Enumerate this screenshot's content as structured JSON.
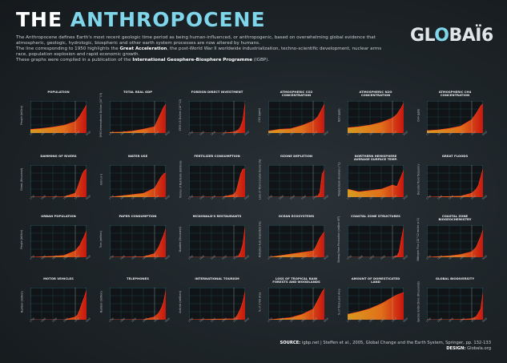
{
  "header": {
    "title_part1": "THE",
    "title_part2": "ANTHROPOCENE",
    "intro_line1": "The Anthropocene defines Earth's most recent geologic time period as being human-influenced, or anthropogenic, based on overwhelming global evidence that atmospheric, geologic, hydrologic, biospheric and other earth system processes are now altered by humans.",
    "intro_line2_pre": "The line corresponding to 1950 highlights the ",
    "intro_line2_bold": "Great Acceleration",
    "intro_line2_post": ", the post-World War II worldwide industrialization, techno-scientific development, nuclear arms race, population explosion and rapid economic growth.",
    "intro_line3_pre": "These graphs were compiled in a publication of the ",
    "intro_line3_bold": "International Geosphere-Biosphere Programme",
    "intro_line3_post": " (IGBP)."
  },
  "logo": {
    "text_a": "GL",
    "text_b": "O",
    "text_c": "BAÏ6",
    "name": "globaia-logo"
  },
  "footer": {
    "source_label": "SOURCE:",
    "source_text": "igbp.net | Steffen et al., 2005, Global Change and the Earth System, Springer, pp. 132-133",
    "design_label": "DESIGN:",
    "design_text": "Globaïa.org"
  },
  "colors": {
    "accent": "#7fd6ea",
    "grid": "#3fa9c4",
    "fill_start": "#d99a1e",
    "fill_end": "#c8170f",
    "line": "#ff3b1f"
  },
  "chart_data": [
    {
      "type": "area",
      "title": "POPULATION",
      "ylabel": "People (billion)",
      "x": [
        1750,
        1800,
        1850,
        1900,
        1950,
        1970,
        1990,
        2000
      ],
      "y": [
        0.8,
        1.0,
        1.3,
        1.7,
        2.5,
        3.7,
        5.3,
        6.1
      ],
      "ylim": [
        0,
        7
      ]
    },
    {
      "type": "area",
      "title": "TOTAL REAL GDP",
      "ylabel": "1990 International Dollars (10^13)",
      "x": [
        1750,
        1800,
        1850,
        1900,
        1950,
        1970,
        1990,
        2000
      ],
      "y": [
        0.1,
        0.15,
        0.3,
        0.6,
        1.0,
        2.5,
        4.0,
        4.5
      ],
      "ylim": [
        0,
        5
      ]
    },
    {
      "type": "area",
      "title": "FOREIGN DIRECT INVESTMENT",
      "ylabel": "1995 US Dollars (10^12)",
      "x": [
        1750,
        1900,
        1950,
        1970,
        1980,
        1990,
        2000
      ],
      "y": [
        0,
        0,
        0.05,
        0.15,
        0.3,
        0.6,
        1.4
      ],
      "ylim": [
        0,
        1.5
      ]
    },
    {
      "type": "area",
      "title": "ATMOSPHERIC CO2 CONCENTRATION",
      "ylabel": "CO2 (ppm)",
      "x": [
        1750,
        1800,
        1850,
        1900,
        1950,
        1970,
        1990,
        2000
      ],
      "y": [
        277,
        283,
        285,
        296,
        311,
        325,
        354,
        369
      ],
      "ylim": [
        270,
        380
      ]
    },
    {
      "type": "area",
      "title": "ATMOSPHERIC N2O CONCENTRATION",
      "ylabel": "N2O (ppb)",
      "x": [
        1750,
        1800,
        1850,
        1900,
        1950,
        1970,
        1990,
        2000
      ],
      "y": [
        270,
        272,
        275,
        280,
        288,
        295,
        308,
        316
      ],
      "ylim": [
        260,
        320
      ]
    },
    {
      "type": "area",
      "title": "ATMOSPHERIC CH4 CONCENTRATION",
      "ylabel": "CH4 (ppb)",
      "x": [
        1750,
        1800,
        1850,
        1900,
        1950,
        1970,
        1990,
        2000
      ],
      "y": [
        700,
        730,
        790,
        880,
        1150,
        1400,
        1700,
        1780
      ],
      "ylim": [
        600,
        1900
      ]
    },
    {
      "type": "area",
      "title": "DAMMING OF RIVERS",
      "ylabel": "Dams (thousand)",
      "x": [
        1750,
        1900,
        1950,
        1960,
        1970,
        1980,
        1990,
        2000
      ],
      "y": [
        0,
        0.5,
        5,
        12,
        20,
        28,
        33,
        35
      ],
      "ylim": [
        0,
        40
      ]
    },
    {
      "type": "area",
      "title": "WATER USE",
      "ylabel": "km3 yr-1",
      "x": [
        1750,
        1900,
        1950,
        1960,
        1970,
        1980,
        1990,
        2000
      ],
      "y": [
        0,
        600,
        1400,
        2000,
        2600,
        3200,
        3600,
        3800
      ],
      "ylim": [
        0,
        5000
      ]
    },
    {
      "type": "area",
      "title": "FERTILIZER CONSUMPTION",
      "ylabel": "Tonnes of Nutrients (millions)",
      "x": [
        1750,
        1900,
        1950,
        1960,
        1970,
        1980,
        1990,
        2000
      ],
      "y": [
        0,
        1,
        14,
        30,
        70,
        115,
        140,
        140
      ],
      "ylim": [
        0,
        160
      ]
    },
    {
      "type": "area",
      "title": "OZONE DEPLETION",
      "ylabel": "Loss of Total Column Ozone (%)",
      "x": [
        1750,
        1950,
        1970,
        1980,
        1990,
        2000
      ],
      "y": [
        0,
        0,
        2,
        10,
        50,
        60
      ],
      "ylim": [
        0,
        70
      ]
    },
    {
      "type": "area",
      "title": "NORTHERN HEMISPHERE AVERAGE SURFACE TEMP.",
      "ylabel": "Temperature Anomaly (°C)",
      "x": [
        1750,
        1800,
        1850,
        1900,
        1950,
        1970,
        1990,
        2000
      ],
      "y": [
        -0.3,
        -0.4,
        -0.35,
        -0.3,
        -0.15,
        -0.2,
        0.2,
        0.4
      ],
      "ylim": [
        -0.6,
        0.6
      ]
    },
    {
      "type": "area",
      "title": "GREAT FLOODS",
      "ylabel": "Decadal flood frequency",
      "x": [
        1750,
        1900,
        1950,
        1970,
        1980,
        1990,
        2000
      ],
      "y": [
        0,
        0.5,
        2,
        4,
        6,
        10,
        14
      ],
      "ylim": [
        0,
        16
      ]
    },
    {
      "type": "area",
      "title": "URBAN POPULATION",
      "ylabel": "People (billion)",
      "x": [
        1750,
        1850,
        1900,
        1950,
        1970,
        1990,
        2000
      ],
      "y": [
        0,
        0.1,
        0.2,
        0.7,
        1.3,
        2.3,
        2.9
      ],
      "ylim": [
        0,
        3.5
      ]
    },
    {
      "type": "area",
      "title": "PAPER CONSUMPTION",
      "ylabel": "Tons (million)",
      "x": [
        1750,
        1900,
        1950,
        1970,
        1990,
        2000
      ],
      "y": [
        0,
        5,
        40,
        120,
        240,
        310
      ],
      "ylim": [
        0,
        350
      ]
    },
    {
      "type": "area",
      "title": "McDONALD'S RESTAURANTS",
      "ylabel": "Number (thousand)",
      "x": [
        1750,
        1950,
        1960,
        1970,
        1980,
        1990,
        2000
      ],
      "y": [
        0,
        0,
        0.2,
        1,
        5,
        12,
        28
      ],
      "ylim": [
        0,
        30
      ]
    },
    {
      "type": "area",
      "title": "OCEAN ECOSYSTEMS",
      "ylabel": "Fisheries Fully Exploited (%)",
      "x": [
        1750,
        1950,
        1960,
        1970,
        1980,
        1990,
        2000
      ],
      "y": [
        0,
        20,
        30,
        45,
        60,
        70,
        80
      ],
      "ylim": [
        0,
        100
      ]
    },
    {
      "type": "area",
      "title": "COASTAL ZONE STRUCTURES",
      "ylabel": "Shrimp Farm Production (million MT)",
      "x": [
        1750,
        1950,
        1970,
        1980,
        1990,
        2000
      ],
      "y": [
        0,
        0,
        0.05,
        0.2,
        0.7,
        1.1
      ],
      "ylim": [
        0,
        1.2
      ]
    },
    {
      "type": "area",
      "title": "COASTAL ZONE BIOGEOCHEMISTRY",
      "ylabel": "Nitrogen Flux (10^12 moles yr-1)",
      "x": [
        1750,
        1850,
        1900,
        1950,
        1970,
        1990,
        2000
      ],
      "y": [
        0,
        0.3,
        0.6,
        1.2,
        2.2,
        4.5,
        6
      ],
      "ylim": [
        0,
        7
      ]
    },
    {
      "type": "area",
      "title": "MOTOR VEHICLES",
      "ylabel": "Number (million)",
      "x": [
        1750,
        1900,
        1950,
        1960,
        1970,
        1980,
        1990,
        2000
      ],
      "y": [
        0,
        0,
        70,
        120,
        250,
        410,
        560,
        730
      ],
      "ylim": [
        0,
        800
      ]
    },
    {
      "type": "area",
      "title": "TELEPHONES",
      "ylabel": "Number (million)",
      "x": [
        1750,
        1900,
        1950,
        1970,
        1980,
        1990,
        2000
      ],
      "y": [
        0,
        5,
        100,
        250,
        400,
        600,
        1000
      ],
      "ylim": [
        0,
        1100
      ]
    },
    {
      "type": "area",
      "title": "INTERNATIONAL TOURISM",
      "ylabel": "Arrivals (millions)",
      "x": [
        1750,
        1950,
        1960,
        1970,
        1980,
        1990,
        2000
      ],
      "y": [
        0,
        25,
        70,
        160,
        280,
        440,
        700
      ],
      "ylim": [
        0,
        800
      ]
    },
    {
      "type": "area",
      "title": "LOSS OF TROPICAL RAIN FORESTS AND WOODLANDS",
      "ylabel": "% of 1700 Area",
      "x": [
        1750,
        1850,
        1900,
        1950,
        1970,
        1990,
        2000
      ],
      "y": [
        0,
        2,
        5,
        10,
        18,
        26,
        29
      ],
      "ylim": [
        0,
        30
      ]
    },
    {
      "type": "area",
      "title": "AMOUNT OF DOMESTICATED LAND",
      "ylabel": "% of Total Land Area",
      "x": [
        1750,
        1800,
        1850,
        1900,
        1950,
        1970,
        1990,
        2000
      ],
      "y": [
        7,
        10,
        14,
        20,
        28,
        31,
        33,
        34
      ],
      "ylim": [
        0,
        40
      ]
    },
    {
      "type": "area",
      "title": "GLOBAL BIODIVERSITY",
      "ylabel": "Species Extinctions (thousands)",
      "x": [
        1750,
        1850,
        1900,
        1950,
        1970,
        1990,
        2000
      ],
      "y": [
        0,
        0.1,
        0.3,
        1,
        3,
        10,
        25
      ],
      "ylim": [
        0,
        30
      ]
    }
  ]
}
